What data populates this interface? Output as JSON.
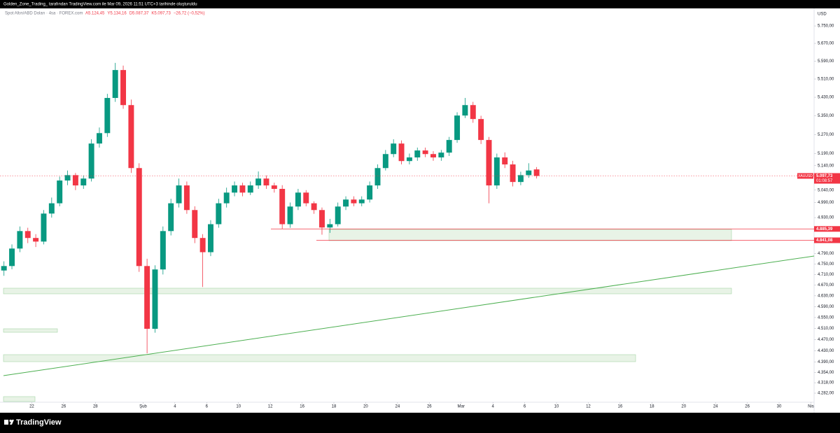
{
  "header": {
    "author": "Golden_Zone_Trading_ tarafından TradingView.com ile Mar 09, 2026 11:51 UTC+3 tarihinde oluşturuldu"
  },
  "footer": {
    "brand": "TradingView"
  },
  "chart_data": {
    "type": "candlestick",
    "legend": {
      "symbol": "Spot Altın/ABD Doları · 4sa · FOREX.com",
      "open": {
        "value": 5124.45,
        "label": "A5.124,45"
      },
      "high": {
        "value": 5134.16,
        "label": "Y5.134,16"
      },
      "low": {
        "value": 5087.37,
        "label": "D5.087,37"
      },
      "close": {
        "value": 5097.73,
        "label": "K5.097,73"
      },
      "change": {
        "value": -26.72,
        "label": "−26,72 (−0,52%)"
      }
    },
    "y_axis_label": "USD",
    "log_scale": true,
    "grid": false,
    "up_color": "#089981",
    "down_color": "#f23645",
    "ylim": [
      4220,
      5825
    ],
    "yticks": [
      {
        "value": 5750,
        "label": "5.750,00"
      },
      {
        "value": 5670,
        "label": "5.670,00"
      },
      {
        "value": 5590,
        "label": "5.590,00"
      },
      {
        "value": 5510,
        "label": "5.510,00"
      },
      {
        "value": 5430,
        "label": "5.430,00"
      },
      {
        "value": 5350,
        "label": "5.350,00"
      },
      {
        "value": 5270,
        "label": "5.270,00"
      },
      {
        "value": 5190,
        "label": "5.190,00"
      },
      {
        "value": 5140,
        "label": "5.140,00"
      },
      {
        "value": 5040,
        "label": "5.040,00"
      },
      {
        "value": 4990,
        "label": "4.990,00"
      },
      {
        "value": 4930,
        "label": "4.930,00"
      },
      {
        "value": 4790,
        "label": "4.790,00"
      },
      {
        "value": 4750,
        "label": "4.750,00"
      },
      {
        "value": 4710,
        "label": "4.710,00"
      },
      {
        "value": 4670,
        "label": "4.670,00"
      },
      {
        "value": 4630,
        "label": "4.630,00"
      },
      {
        "value": 4590,
        "label": "4.590,00"
      },
      {
        "value": 4550,
        "label": "4.550,00"
      },
      {
        "value": 4510,
        "label": "4.510,00"
      },
      {
        "value": 4470,
        "label": "4.470,00"
      },
      {
        "value": 4430,
        "label": "4.430,00"
      },
      {
        "value": 4390,
        "label": "4.390,00"
      },
      {
        "value": 4354,
        "label": "4.354,00"
      },
      {
        "value": 4318,
        "label": "4.318,00"
      },
      {
        "value": 4282,
        "label": "4.282,00"
      }
    ],
    "xlim": [
      -2,
      49.2
    ],
    "xticks": [
      {
        "value": 0,
        "label": "22"
      },
      {
        "value": 2,
        "label": "26"
      },
      {
        "value": 4,
        "label": "28"
      },
      {
        "value": 7,
        "label": "Şub"
      },
      {
        "value": 9,
        "label": "4"
      },
      {
        "value": 11,
        "label": "6"
      },
      {
        "value": 13,
        "label": "10"
      },
      {
        "value": 15,
        "label": "12"
      },
      {
        "value": 17,
        "label": "16"
      },
      {
        "value": 19,
        "label": "18"
      },
      {
        "value": 21,
        "label": "20"
      },
      {
        "value": 23,
        "label": "24"
      },
      {
        "value": 25,
        "label": "26"
      },
      {
        "value": 27,
        "label": "Mar"
      },
      {
        "value": 29,
        "label": "4"
      },
      {
        "value": 31,
        "label": "6"
      },
      {
        "value": 33,
        "label": "10"
      },
      {
        "value": 35,
        "label": "12"
      },
      {
        "value": 37,
        "label": "16"
      },
      {
        "value": 39,
        "label": "18"
      },
      {
        "value": 41,
        "label": "20"
      },
      {
        "value": 43,
        "label": "24"
      },
      {
        "value": 45,
        "label": "26"
      },
      {
        "value": 47,
        "label": "30"
      },
      {
        "value": 49,
        "label": "Nis"
      }
    ],
    "x": [
      -1.75,
      -1.25,
      -0.75,
      -0.25,
      0.25,
      0.75,
      1.25,
      1.75,
      2.25,
      2.75,
      3.25,
      3.75,
      4.25,
      4.75,
      5.25,
      5.75,
      6.25,
      6.75,
      7.25,
      7.75,
      8.25,
      8.75,
      9.25,
      9.75,
      10.25,
      10.75,
      11.25,
      11.75,
      12.25,
      12.75,
      13.25,
      13.75,
      14.25,
      14.75,
      15.25,
      15.75,
      16.25,
      16.75,
      17.25,
      17.75,
      18.25,
      18.75,
      19.25,
      19.75,
      20.25,
      20.75,
      21.25,
      21.75,
      22.25,
      22.75,
      23.25,
      23.75,
      24.25,
      24.75,
      25.25,
      25.75,
      26.25,
      26.75,
      27.25,
      27.75,
      28.25,
      28.75,
      29.25,
      29.75,
      30.25,
      30.75,
      31.25,
      31.75
    ],
    "open": [
      4725,
      4742,
      4809,
      4877,
      4850,
      4836,
      4946,
      4987,
      5079,
      5101,
      5059,
      5087,
      5232,
      5276,
      5427,
      5550,
      5396,
      5130,
      4742,
      4509,
      4729,
      4877,
      4987,
      5059,
      4960,
      4850,
      4795,
      4904,
      4987,
      5030,
      5059,
      5030,
      5059,
      5087,
      5059,
      5045,
      4904,
      4974,
      5030,
      4987,
      4960,
      4891,
      4904,
      4974,
      5002,
      4987,
      5002,
      5059,
      5130,
      5188,
      5232,
      5159,
      5174,
      5203,
      5188,
      5174,
      5194,
      5247,
      5351,
      5396,
      5336,
      5247,
      5059,
      5174,
      5145,
      5073,
      5101,
      5124.45
    ],
    "high": [
      4760,
      4825,
      4895,
      4890,
      4865,
      4960,
      5010,
      5095,
      5120,
      5110,
      5100,
      5250,
      5300,
      5445,
      5582,
      5570,
      5420,
      5150,
      4770,
      4745,
      4895,
      5005,
      5087,
      5075,
      4975,
      4865,
      4920,
      5005,
      5050,
      5075,
      5070,
      5075,
      5116,
      5100,
      5070,
      5060,
      4990,
      5045,
      5040,
      4995,
      4970,
      4925,
      4990,
      5015,
      5015,
      5015,
      5075,
      5145,
      5205,
      5250,
      5245,
      5190,
      5215,
      5215,
      5200,
      5205,
      5260,
      5365,
      5427,
      5410,
      5350,
      5260,
      5190,
      5195,
      5160,
      5115,
      5150,
      5134.16
    ],
    "low": [
      4705,
      4730,
      4795,
      4830,
      4815,
      4825,
      4930,
      4975,
      5060,
      5040,
      5045,
      5075,
      5215,
      5260,
      5410,
      5380,
      5110,
      4720,
      4421,
      4495,
      4710,
      4860,
      4970,
      4945,
      4830,
      4663,
      4780,
      4890,
      4970,
      5015,
      5015,
      5020,
      5045,
      5045,
      5030,
      4885,
      4890,
      4960,
      4975,
      4945,
      4863,
      4870,
      4895,
      4960,
      4975,
      4975,
      4990,
      5045,
      5120,
      5175,
      5145,
      5145,
      5160,
      5175,
      5160,
      5160,
      5180,
      5235,
      5340,
      5320,
      5230,
      4987,
      5045,
      5130,
      5055,
      5060,
      5090,
      5087.37
    ],
    "close": [
      4742,
      4809,
      4877,
      4850,
      4836,
      4946,
      4987,
      5079,
      5101,
      5059,
      5087,
      5232,
      5276,
      5427,
      5550,
      5396,
      5130,
      4742,
      4509,
      4729,
      4877,
      4987,
      5059,
      4960,
      4850,
      4795,
      4904,
      4987,
      5030,
      5059,
      5030,
      5059,
      5087,
      5059,
      5045,
      4904,
      4974,
      5030,
      4987,
      4960,
      4891,
      4904,
      4974,
      5002,
      4987,
      5002,
      5059,
      5130,
      5188,
      5232,
      5159,
      5174,
      5203,
      5188,
      5174,
      5194,
      5247,
      5351,
      5396,
      5336,
      5247,
      5059,
      5174,
      5145,
      5073,
      5101,
      5120,
      5097.73
    ],
    "last_price": {
      "value": 5097.73,
      "label": "5.097,73",
      "symbol": "XAUUSD",
      "countdown": "01:08:57"
    },
    "levels": [
      {
        "value": 4885.39,
        "label": "4.885,39",
        "color": "#f23645"
      },
      {
        "value": 4841.08,
        "label": "4.841,08",
        "color": "#f23645"
      }
    ]
  }
}
